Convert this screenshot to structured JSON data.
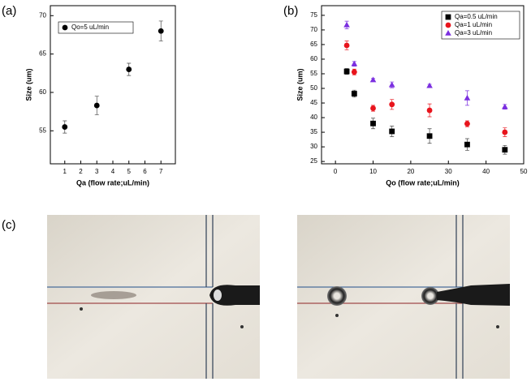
{
  "panels": [
    "(a)",
    "(b)",
    "(c)"
  ],
  "chart_data": [
    {
      "type": "scatter",
      "x_label": "Qa (flow rate;uL/min)",
      "y_label": "Size (um)",
      "xlim": [
        0.1,
        7.9
      ],
      "xticks": [
        1,
        2,
        3,
        4,
        5,
        6,
        7
      ],
      "ylim": [
        50.7,
        71.3
      ],
      "yticks": [
        55,
        60,
        65,
        70
      ],
      "grid": false,
      "legend": "upper left",
      "series": [
        {
          "name": "Qo=5 uL/min",
          "color": "#000000",
          "marker": "circle",
          "x": [
            1,
            3,
            5,
            7
          ],
          "values": [
            55.5,
            58.3,
            63,
            68
          ],
          "errors": [
            0.8,
            1.2,
            0.8,
            1.3
          ]
        }
      ]
    },
    {
      "type": "scatter",
      "x_label": "Qo (flow rate;uL/min)",
      "y_label": "Size (um)",
      "xlim": [
        -3.7,
        50
      ],
      "xticks": [
        0,
        10,
        20,
        30,
        40,
        50
      ],
      "ylim": [
        24.2,
        78.3
      ],
      "yticks": [
        25,
        30,
        35,
        40,
        45,
        50,
        55,
        60,
        65,
        70,
        75
      ],
      "grid": false,
      "legend": "upper right",
      "series": [
        {
          "name": "Qa=0.5 uL/min",
          "color": "#000000",
          "marker": "square",
          "x": [
            3,
            5,
            10,
            15,
            25,
            35,
            45
          ],
          "values": [
            55.8,
            48.2,
            38,
            35.3,
            33.7,
            30.8,
            29
          ],
          "errors": [
            1,
            1.2,
            1.8,
            1.8,
            2.5,
            2,
            1.5
          ]
        },
        {
          "name": "Qa=1 uL/min",
          "color": "#e8141c",
          "marker": "circle",
          "x": [
            3,
            5,
            10,
            15,
            25,
            35,
            45
          ],
          "values": [
            64.7,
            55.6,
            43.2,
            44.5,
            42.5,
            37.9,
            35
          ],
          "errors": [
            1.5,
            1,
            1,
            1.7,
            2.2,
            1,
            1.5
          ]
        },
        {
          "name": "Qa=3 uL/min",
          "color": "#7b2fe0",
          "marker": "triangle",
          "x": [
            3,
            5,
            10,
            15,
            25,
            35,
            45
          ],
          "values": [
            71.7,
            58.4,
            52.9,
            51.2,
            50.9,
            46.7,
            43.7
          ],
          "errors": [
            1.3,
            0.8,
            0.5,
            1,
            0.5,
            2.5,
            0.8
          ]
        }
      ]
    }
  ]
}
